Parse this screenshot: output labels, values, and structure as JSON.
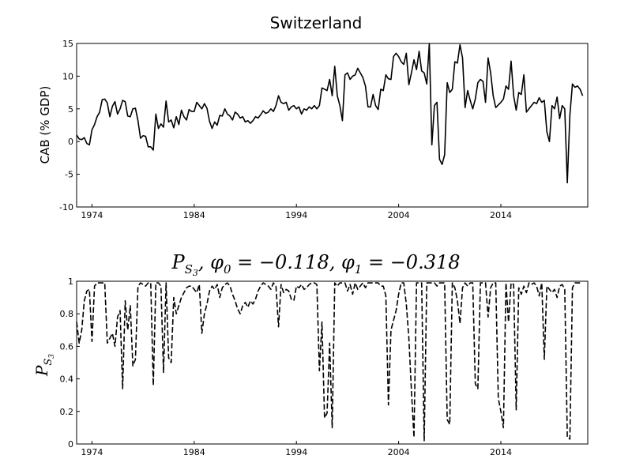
{
  "chart_data": [
    {
      "type": "line",
      "title": "Switzerland",
      "xlabel": "",
      "ylabel": "CAB (% GDP)",
      "xlim": [
        1972.5,
        2022.5
      ],
      "ylim": [
        -10,
        15
      ],
      "x_ticks": [
        1974,
        1984,
        1994,
        2004,
        2014
      ],
      "y_ticks": [
        -10,
        -5,
        0,
        5,
        10,
        15
      ],
      "grid": false,
      "line_style": "solid",
      "x_start": 1972.5,
      "x_step": 0.25,
      "values": [
        1.0,
        0.4,
        0.3,
        0.6,
        -0.3,
        -0.5,
        1.8,
        2.6,
        3.8,
        4.5,
        6.4,
        6.5,
        5.9,
        3.8,
        5.4,
        6.1,
        4.2,
        5.0,
        6.3,
        6.1,
        3.9,
        3.8,
        5.0,
        5.1,
        3.2,
        0.5,
        0.9,
        0.8,
        -0.8,
        -0.8,
        -1.3,
        4.2,
        2.0,
        2.7,
        2.2,
        6.2,
        3.0,
        3.3,
        2.1,
        3.8,
        2.6,
        4.8,
        3.8,
        3.3,
        4.9,
        4.6,
        4.6,
        6.0,
        5.5,
        5.0,
        5.8,
        5.1,
        3.1,
        2.0,
        3.0,
        2.5,
        4.0,
        3.9,
        5.0,
        4.2,
        3.9,
        3.3,
        4.5,
        4.2,
        3.6,
        3.8,
        3.0,
        3.2,
        2.8,
        3.2,
        3.8,
        3.6,
        4.1,
        4.7,
        4.3,
        4.5,
        5.0,
        4.6,
        5.5,
        7.0,
        6.0,
        5.8,
        6.0,
        4.8,
        5.3,
        5.5,
        5.0,
        5.3,
        4.2,
        5.0,
        4.8,
        5.3,
        5.0,
        5.5,
        5.0,
        5.5,
        8.2,
        8.0,
        7.8,
        9.5,
        7.0,
        11.5,
        7.0,
        5.5,
        3.2,
        10.2,
        10.5,
        9.5,
        10.0,
        10.2,
        11.2,
        10.5,
        9.8,
        8.5,
        5.3,
        5.3,
        7.2,
        5.5,
        4.9,
        8.0,
        7.8,
        10.2,
        9.6,
        9.5,
        13.0,
        13.5,
        13.0,
        12.2,
        11.8,
        13.5,
        8.7,
        10.5,
        12.5,
        11.0,
        13.8,
        10.8,
        10.5,
        8.8,
        15.0,
        -0.5,
        5.5,
        6.0,
        -2.7,
        -3.5,
        -2.0,
        9.0,
        7.5,
        8.0,
        12.2,
        12.0,
        14.8,
        12.8,
        5.2,
        7.8,
        6.3,
        5.0,
        6.5,
        9.0,
        9.5,
        9.2,
        6.0,
        12.8,
        10.5,
        7.0,
        5.2,
        5.6,
        6.0,
        6.5,
        8.5,
        8.0,
        12.3,
        7.0,
        4.8,
        7.5,
        7.2,
        10.2,
        4.5,
        5.0,
        5.5,
        6.0,
        5.8,
        6.7,
        6.0,
        6.3,
        1.5,
        0.0,
        5.5,
        5.0,
        6.8,
        3.5,
        5.5,
        5.0,
        -6.3,
        4.0,
        8.8,
        8.3,
        8.5,
        8.0,
        7.0
      ]
    },
    {
      "type": "line",
      "title_parts": [
        "P",
        "S",
        "3",
        ", φ",
        "0",
        " = −0.118, φ",
        "1",
        " = −0.318"
      ],
      "xlabel": "",
      "ylabel_parts": [
        "P",
        "S",
        "3"
      ],
      "xlim": [
        1972.5,
        2022.5
      ],
      "ylim": [
        0,
        1
      ],
      "x_ticks": [
        1974,
        1984,
        1994,
        2004,
        2014
      ],
      "y_ticks": [
        0,
        0.2,
        0.4,
        0.6,
        0.8,
        1
      ],
      "grid": false,
      "line_style": "dashed",
      "x_start": 1972.5,
      "x_step": 0.25,
      "values": [
        0.75,
        0.62,
        0.7,
        0.88,
        0.94,
        0.95,
        0.63,
        0.97,
        0.99,
        0.99,
        0.99,
        0.99,
        0.62,
        0.65,
        0.68,
        0.6,
        0.78,
        0.82,
        0.34,
        0.88,
        0.7,
        0.85,
        0.48,
        0.52,
        0.97,
        0.99,
        0.98,
        0.97,
        0.99,
        0.99,
        0.36,
        0.99,
        0.99,
        0.97,
        0.44,
        0.99,
        0.53,
        0.5,
        0.9,
        0.8,
        0.85,
        0.9,
        0.93,
        0.96,
        0.97,
        0.97,
        0.95,
        0.93,
        0.98,
        0.68,
        0.8,
        0.86,
        0.94,
        0.97,
        0.95,
        0.98,
        0.9,
        0.96,
        0.98,
        0.99,
        0.97,
        0.92,
        0.88,
        0.83,
        0.8,
        0.85,
        0.87,
        0.84,
        0.88,
        0.86,
        0.89,
        0.94,
        0.97,
        0.99,
        0.98,
        0.97,
        0.95,
        0.99,
        0.97,
        0.72,
        0.98,
        0.93,
        0.95,
        0.94,
        0.89,
        0.88,
        0.97,
        0.96,
        0.98,
        0.95,
        0.96,
        0.98,
        0.99,
        0.99,
        0.98,
        0.45,
        0.75,
        0.16,
        0.19,
        0.62,
        0.1,
        0.99,
        0.97,
        0.99,
        0.99,
        0.99,
        0.94,
        0.98,
        0.92,
        0.99,
        0.95,
        0.97,
        0.99,
        0.96,
        0.99,
        0.99,
        0.99,
        0.99,
        0.99,
        0.97,
        0.97,
        0.91,
        0.24,
        0.7,
        0.76,
        0.82,
        0.92,
        0.99,
        0.99,
        0.86,
        0.65,
        0.33,
        0.04,
        0.99,
        0.99,
        0.99,
        0.02,
        0.99,
        0.99,
        0.99,
        0.99,
        0.97,
        0.99,
        0.99,
        0.99,
        0.15,
        0.12,
        0.99,
        0.96,
        0.88,
        0.74,
        0.96,
        0.99,
        0.97,
        0.99,
        0.99,
        0.37,
        0.34,
        0.99,
        0.99,
        0.99,
        0.78,
        0.96,
        0.99,
        0.99,
        0.28,
        0.2,
        0.1,
        0.99,
        0.75,
        0.99,
        0.98,
        0.21,
        0.96,
        0.92,
        0.97,
        0.93,
        0.99,
        0.98,
        0.99,
        0.97,
        0.91,
        0.99,
        0.52,
        0.97,
        0.95,
        0.93,
        0.95,
        0.9,
        0.97,
        0.98,
        0.95,
        0.04,
        0.03,
        0.96,
        0.99,
        0.99,
        0.99
      ]
    }
  ]
}
